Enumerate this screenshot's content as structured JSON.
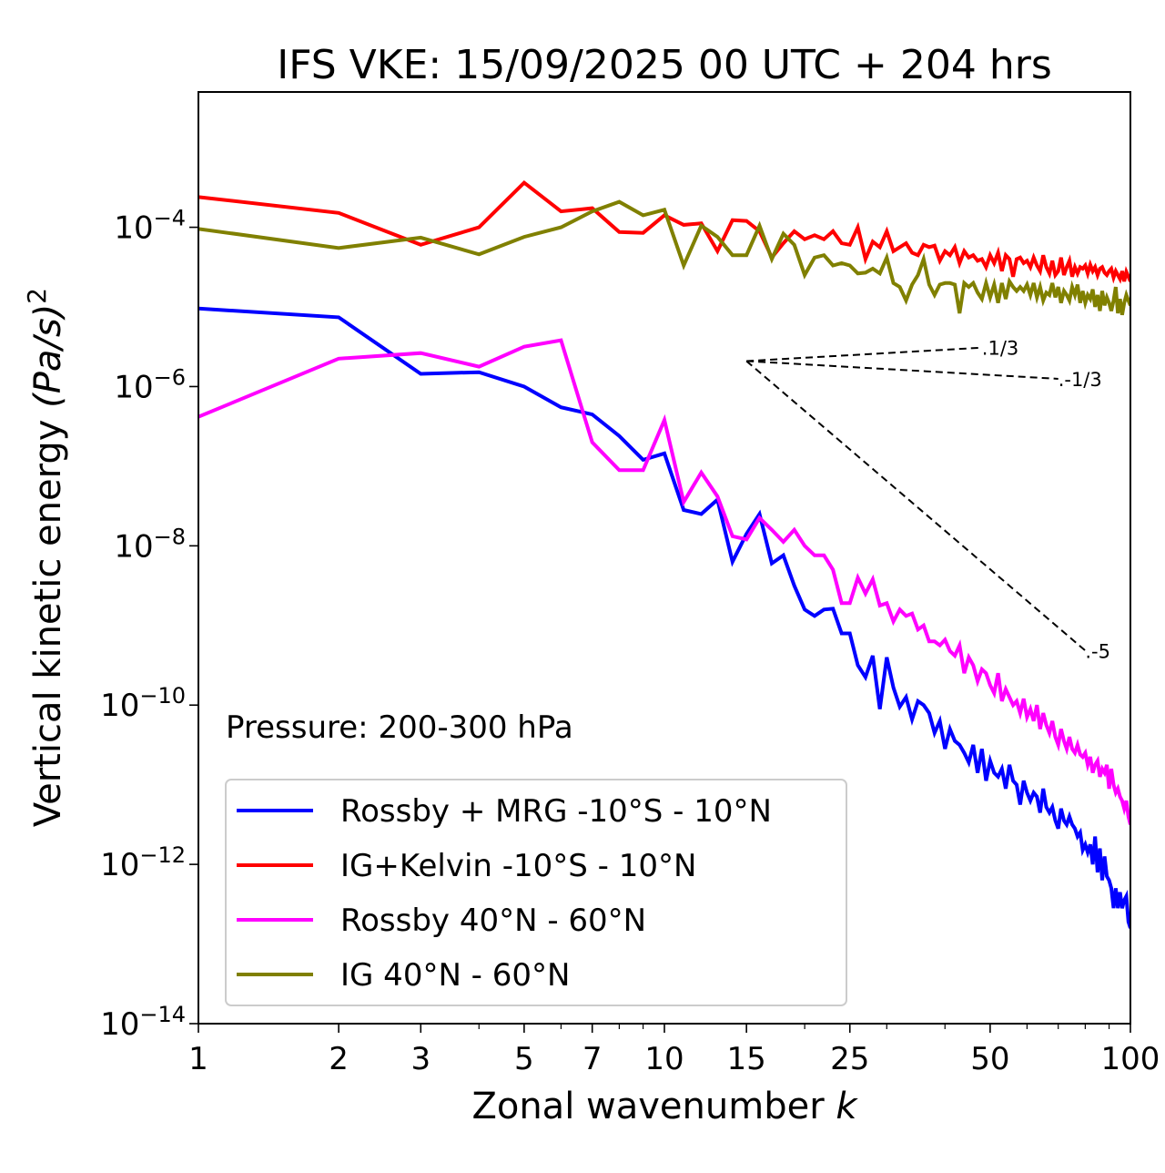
{
  "chart_data": {
    "type": "line",
    "title": "IFS VKE: 15/09/2025 00 UTC + 204 hrs",
    "xlabel": "Zonal wavenumber",
    "xlabel_var": "k",
    "ylabel": "Vertical kinetic energy",
    "ylabel_units": "(Pa/s)",
    "ylabel_exp": "2",
    "xscale": "log",
    "yscale": "log",
    "xlim": [
      1,
      100
    ],
    "ylim": [
      1e-14,
      0.005
    ],
    "xticks": [
      1,
      2,
      3,
      5,
      7,
      10,
      15,
      25,
      50,
      100
    ],
    "xtick_labels": [
      "1",
      "2",
      "3",
      "5",
      "7",
      "10",
      "15",
      "25",
      "50",
      "100"
    ],
    "yticks": [
      1e-14,
      1e-12,
      1e-10,
      1e-08,
      1e-06,
      0.0001
    ],
    "ytick_labels": [
      {
        "base": "10",
        "exp": "−14"
      },
      {
        "base": "10",
        "exp": "−12"
      },
      {
        "base": "10",
        "exp": "−10"
      },
      {
        "base": "10",
        "exp": "−8"
      },
      {
        "base": "10",
        "exp": "−6"
      },
      {
        "base": "10",
        "exp": "−4"
      }
    ],
    "grid": false,
    "annotation": "Pressure: 200-300 hPa",
    "legend_position": "lower-left",
    "values_note": "series values given as log10 of energy at k = 1..100",
    "reference_slopes": [
      {
        "label": "1/3",
        "slope": 0.3333,
        "k_start": 15,
        "k_end": 48,
        "log10_y_start": -5.68
      },
      {
        "label": "-1/3",
        "slope": -0.3333,
        "k_start": 15,
        "k_end": 70,
        "log10_y_start": -5.68
      },
      {
        "label": "-5",
        "slope": -5,
        "k_start": 15,
        "k_end": 80,
        "log10_y_start": -5.68
      }
    ],
    "series": [
      {
        "name": "Rossby + MRG -10°S - 10°N",
        "color": "#0000ff",
        "log10_values": [
          -5.02,
          -5.13,
          -5.84,
          -5.82,
          -6.0,
          -6.26,
          -6.35,
          -6.62,
          -6.92,
          -6.84,
          -7.55,
          -7.6,
          -7.42,
          -8.2,
          -7.85,
          -7.6,
          -8.22,
          -8.12,
          -8.5,
          -8.8,
          -8.88,
          -8.8,
          -8.79,
          -9.1,
          -9.1,
          -9.5,
          -9.65,
          -9.38,
          -10.05,
          -9.4,
          -9.78,
          -10.02,
          -9.9,
          -10.18,
          -9.95,
          -10.0,
          -10.1,
          -10.35,
          -10.2,
          -10.55,
          -10.3,
          -10.45,
          -10.5,
          -10.6,
          -10.72,
          -10.5,
          -10.85,
          -10.55,
          -10.95,
          -10.7,
          -10.85,
          -10.9,
          -10.8,
          -11.05,
          -10.75,
          -10.95,
          -11.0,
          -11.25,
          -10.95,
          -11.1,
          -11.2,
          -11.1,
          -11.15,
          -11.35,
          -11.05,
          -11.28,
          -11.35,
          -11.28,
          -11.45,
          -11.55,
          -11.3,
          -11.45,
          -11.5,
          -11.4,
          -11.5,
          -11.55,
          -11.65,
          -11.6,
          -11.82,
          -11.75,
          -11.85,
          -11.75,
          -12.0,
          -11.65,
          -12.1,
          -11.8,
          -12.2,
          -11.9,
          -12.15,
          -12.2,
          -12.3,
          -12.55,
          -12.3,
          -12.55,
          -12.35,
          -12.55,
          -12.45,
          -12.4,
          -12.72,
          -12.8
        ]
      },
      {
        "name": "IG+Kelvin -10°S - 10°N",
        "color": "#ff0000",
        "log10_values": [
          -3.62,
          -3.82,
          -4.22,
          -4.0,
          -3.44,
          -3.8,
          -3.76,
          -4.06,
          -4.07,
          -3.85,
          -3.97,
          -3.95,
          -4.3,
          -3.91,
          -3.92,
          -4.05,
          -4.38,
          -4.2,
          -4.05,
          -4.15,
          -4.1,
          -4.15,
          -4.05,
          -4.2,
          -4.22,
          -4.0,
          -4.4,
          -4.18,
          -4.25,
          -4.05,
          -4.3,
          -4.25,
          -4.2,
          -4.32,
          -4.35,
          -4.22,
          -4.25,
          -4.23,
          -4.42,
          -4.3,
          -4.35,
          -4.25,
          -4.45,
          -4.3,
          -4.38,
          -4.35,
          -4.42,
          -4.4,
          -4.5,
          -4.35,
          -4.45,
          -4.32,
          -4.55,
          -4.35,
          -4.4,
          -4.62,
          -4.4,
          -4.38,
          -4.45,
          -4.42,
          -4.5,
          -4.38,
          -4.48,
          -4.55,
          -4.35,
          -4.5,
          -4.58,
          -4.42,
          -4.6,
          -4.55,
          -4.38,
          -4.6,
          -4.5,
          -4.42,
          -4.62,
          -4.5,
          -4.58,
          -4.5,
          -4.52,
          -4.48,
          -4.58,
          -4.47,
          -4.55,
          -4.5,
          -4.6,
          -4.52,
          -4.5,
          -4.57,
          -4.6,
          -4.55,
          -4.52,
          -4.63,
          -4.55,
          -4.6,
          -4.65,
          -4.55,
          -4.68,
          -4.56,
          -4.62,
          -4.68
        ]
      },
      {
        "name": "Rossby 40°N - 60°N",
        "color": "#ff00ff",
        "log10_values": [
          -6.38,
          -5.65,
          -5.58,
          -5.75,
          -5.5,
          -5.42,
          -6.7,
          -7.05,
          -7.05,
          -6.42,
          -7.45,
          -7.08,
          -7.38,
          -7.88,
          -7.92,
          -7.65,
          -7.8,
          -7.95,
          -7.8,
          -8.0,
          -8.12,
          -8.12,
          -8.3,
          -8.72,
          -8.72,
          -8.4,
          -8.6,
          -8.42,
          -8.75,
          -8.72,
          -8.95,
          -8.8,
          -8.88,
          -8.85,
          -9.05,
          -9.0,
          -9.2,
          -9.2,
          -9.25,
          -9.18,
          -9.32,
          -9.38,
          -9.25,
          -9.6,
          -9.4,
          -9.5,
          -9.7,
          -9.55,
          -9.6,
          -9.75,
          -9.85,
          -9.6,
          -9.95,
          -9.8,
          -9.9,
          -10.0,
          -9.95,
          -10.1,
          -9.92,
          -10.15,
          -10.05,
          -10.2,
          -10.0,
          -10.3,
          -10.1,
          -10.25,
          -10.35,
          -10.2,
          -10.4,
          -10.5,
          -10.3,
          -10.45,
          -10.55,
          -10.4,
          -10.55,
          -10.6,
          -10.5,
          -10.62,
          -10.65,
          -10.6,
          -10.75,
          -10.65,
          -10.85,
          -10.75,
          -10.7,
          -10.9,
          -10.8,
          -10.85,
          -10.75,
          -11.05,
          -10.8,
          -11.0,
          -11.1,
          -11.05,
          -11.15,
          -11.2,
          -11.3,
          -11.2,
          -11.4,
          -11.5
        ]
      },
      {
        "name": "IG 40°N - 60°N",
        "color": "#808000",
        "log10_values": [
          -4.02,
          -4.26,
          -4.13,
          -4.34,
          -4.12,
          -4.0,
          -3.8,
          -3.68,
          -3.85,
          -3.78,
          -4.48,
          -3.98,
          -4.12,
          -4.35,
          -4.35,
          -3.98,
          -4.4,
          -4.08,
          -4.22,
          -4.6,
          -4.38,
          -4.35,
          -4.48,
          -4.45,
          -4.48,
          -4.58,
          -4.57,
          -4.52,
          -4.58,
          -4.38,
          -4.7,
          -4.75,
          -4.92,
          -4.72,
          -4.6,
          -4.4,
          -4.72,
          -4.85,
          -4.72,
          -4.7,
          -4.7,
          -4.72,
          -5.08,
          -4.7,
          -4.75,
          -4.7,
          -4.82,
          -4.9,
          -4.7,
          -4.88,
          -4.72,
          -4.95,
          -4.7,
          -4.9,
          -4.68,
          -4.75,
          -4.8,
          -4.75,
          -4.8,
          -4.72,
          -4.85,
          -4.7,
          -4.88,
          -4.75,
          -4.92,
          -4.82,
          -4.85,
          -4.7,
          -4.88,
          -4.75,
          -4.95,
          -4.8,
          -4.85,
          -4.92,
          -4.75,
          -4.85,
          -4.72,
          -4.95,
          -4.8,
          -4.95,
          -4.85,
          -4.9,
          -4.78,
          -5.0,
          -4.85,
          -5.05,
          -4.8,
          -4.98,
          -4.88,
          -4.95,
          -5.05,
          -4.92,
          -4.75,
          -5.08,
          -4.9,
          -5.1,
          -4.95,
          -4.85,
          -4.92,
          -4.98
        ]
      }
    ]
  }
}
